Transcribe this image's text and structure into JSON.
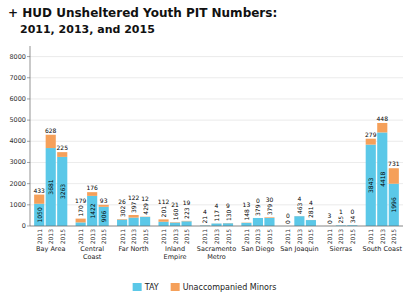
{
  "chart_data": {
    "type": "bar",
    "stacked": true,
    "data_labels": true,
    "grid": true,
    "legend": "bottom",
    "title": "+ HUD Unsheltered Youth PIT Numbers:",
    "subtitle": "2011, 2013, and 2015",
    "categories": [
      "2011",
      "2013",
      "2015",
      "2011",
      "2013",
      "2015",
      "2011",
      "2013",
      "2015",
      "2011",
      "2013",
      "2015",
      "2011",
      "2013",
      "2015",
      "2011",
      "2013",
      "2015",
      "2011",
      "2013",
      "2015",
      "2011",
      "2013",
      "2015",
      "2011",
      "2013",
      "2015"
    ],
    "groups": [
      "Bay Area",
      "Central\nCoast",
      "Far North",
      "Inland\nEmpire",
      "Sacramento\nMetro",
      "San Diego",
      "San Joaquin",
      "Sierras",
      "South Coast"
    ],
    "series": [
      {
        "name": "TAY",
        "color": "#5bc8e8",
        "values": [
          1050,
          3681,
          3263,
          170,
          1422,
          906,
          302,
          397,
          429,
          201,
          160,
          223,
          21,
          117,
          130,
          148,
          379,
          379,
          0,
          463,
          281,
          0,
          25,
          34,
          3843,
          4418,
          1996
        ]
      },
      {
        "name": "Unaccompanied Minors",
        "color": "#f5a05a",
        "values": [
          433,
          628,
          225,
          179,
          176,
          93,
          26,
          122,
          12,
          112,
          21,
          19,
          4,
          4,
          9,
          13,
          0,
          30,
          0,
          4,
          4,
          3,
          1,
          0,
          279,
          448,
          731
        ]
      }
    ],
    "ylim": [
      0,
      8500
    ],
    "yticks": [
      0,
      1000,
      2000,
      3000,
      4000,
      5000,
      6000,
      7000,
      8000
    ]
  }
}
